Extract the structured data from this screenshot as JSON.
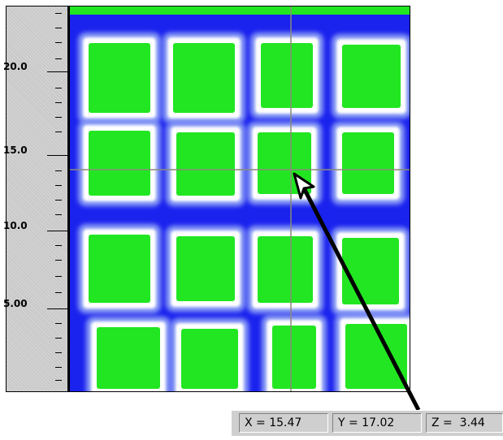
{
  "colors": {
    "background": "#1a22ee",
    "cell_fill": "#22e622",
    "cell_halo": "#ffffff",
    "crosshair": "#8a8a7a",
    "ruler": "#c9c9c9",
    "statusbar": "#cfcfcf"
  },
  "ruler": {
    "labels": [
      "20.0",
      "15.0",
      "10.0",
      "5.00"
    ]
  },
  "readout": {
    "x": "X = 15.47",
    "y": "Y = 17.02",
    "z": "Z =  3.44"
  },
  "icons": {
    "arrow": "pointer-arrow-icon"
  }
}
